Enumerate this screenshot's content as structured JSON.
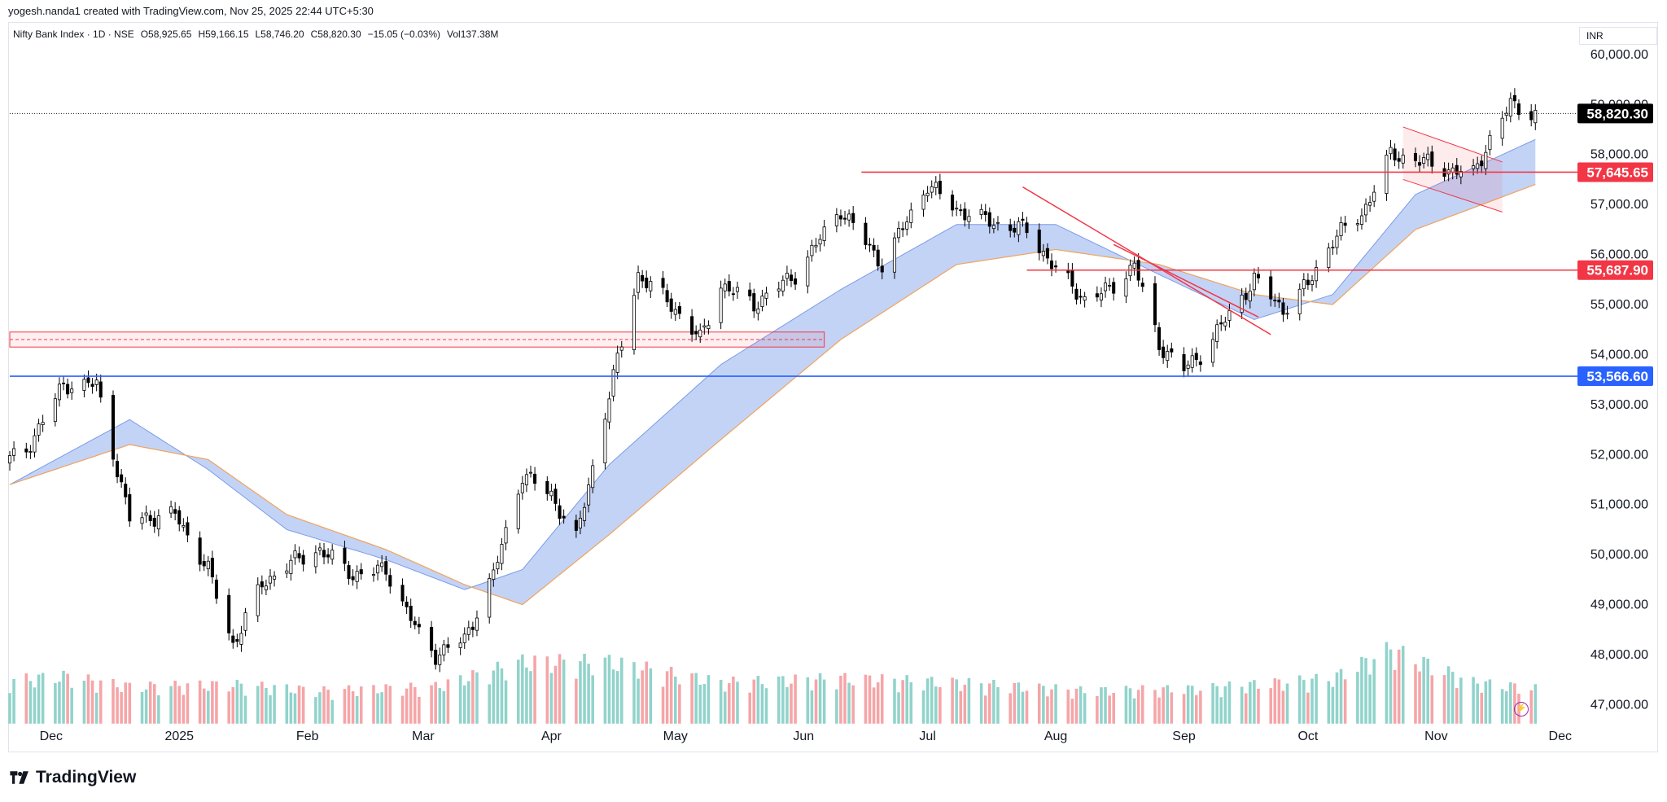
{
  "credit": "yogesh.nanda1 created with TradingView.com, Nov 25, 2025 22:44 UTC+5:30",
  "legend": {
    "symbol": "Nifty Bank Index · 1D · NSE",
    "open": "O58,925.65",
    "high": "H59,166.15",
    "low": "L58,746.20",
    "close": "C58,820.30",
    "change": "−15.05 (−0.03%)",
    "volume": "Vol137.38M"
  },
  "currency": "INR",
  "brand": "TradingView",
  "colors": {
    "up_candle": "#ffffff",
    "down_candle": "#000000",
    "candle_border": "#000000",
    "vol_up": "#91d3cb",
    "vol_down": "#f5a5a8",
    "band_fill": "#b8cbf5",
    "band_upper": "#7a9be8",
    "band_lower": "#f0a35a",
    "level_red": "#f23645",
    "level_blue": "#2962ff",
    "trend_red": "#f23645",
    "zone_fill": "rgba(242,54,69,0.08)",
    "last_price_bg": "#000000"
  },
  "chart_data": {
    "type": "candlestick",
    "title": "",
    "y_axis": {
      "min": 46600,
      "max": 60600,
      "ticks": [
        47000,
        48000,
        49000,
        50000,
        51000,
        52000,
        53000,
        54000,
        55000,
        56000,
        57000,
        58000,
        59000,
        60000
      ],
      "tick_labels": [
        "47,000.00",
        "48,000.00",
        "49,000.00",
        "50,000.00",
        "51,000.00",
        "52,000.00",
        "53,000.00",
        "54,000.00",
        "55,000.00",
        "56,000.00",
        "57,000.00",
        "58,000.00",
        "59,000.00",
        "60,000.00"
      ]
    },
    "x_axis": {
      "labels": [
        "Dec",
        "2025",
        "Feb",
        "Mar",
        "Apr",
        "May",
        "Jun",
        "Jul",
        "Aug",
        "Sep",
        "Oct",
        "Nov",
        "Dec"
      ],
      "dates": [
        "2024-12-01",
        "2025-01-01",
        "2025-02-01",
        "2025-03-01",
        "2025-04-01",
        "2025-05-01",
        "2025-06-01",
        "2025-07-01",
        "2025-08-01",
        "2025-09-01",
        "2025-10-01",
        "2025-11-01",
        "2025-12-01"
      ],
      "start": "2024-11-21",
      "end": "2025-12-04"
    },
    "close_series": {
      "description": "approximate daily closes, linearly sampled between key points",
      "dates": [
        "2024-11-21",
        "2024-11-25",
        "2024-12-04",
        "2024-12-12",
        "2024-12-20",
        "2024-12-31",
        "2025-01-08",
        "2025-01-14",
        "2025-01-21",
        "2025-01-27",
        "2025-02-04",
        "2025-02-12",
        "2025-02-20",
        "2025-02-28",
        "2025-03-04",
        "2025-03-11",
        "2025-03-18",
        "2025-03-25",
        "2025-04-01",
        "2025-04-07",
        "2025-04-15",
        "2025-04-22",
        "2025-04-30",
        "2025-05-07",
        "2025-05-12",
        "2025-05-20",
        "2025-05-30",
        "2025-06-10",
        "2025-06-20",
        "2025-07-01",
        "2025-07-08",
        "2025-07-18",
        "2025-07-25",
        "2025-08-01",
        "2025-08-08",
        "2025-08-14",
        "2025-08-20",
        "2025-08-26",
        "2025-09-01",
        "2025-09-05",
        "2025-09-12",
        "2025-09-18",
        "2025-09-25",
        "2025-10-01",
        "2025-10-07",
        "2025-10-14",
        "2025-10-21",
        "2025-10-27",
        "2025-11-04",
        "2025-11-10",
        "2025-11-14",
        "2025-11-19",
        "2025-11-25"
      ],
      "values": [
        51900,
        52100,
        53400,
        53400,
        50700,
        50800,
        49700,
        48200,
        49400,
        49800,
        50100,
        49600,
        49700,
        48400,
        48000,
        48300,
        49600,
        51600,
        51200,
        50300,
        53200,
        55600,
        55000,
        54300,
        55400,
        55000,
        55600,
        56900,
        55800,
        57400,
        56900,
        56600,
        56500,
        55700,
        55100,
        55300,
        55800,
        54200,
        53700,
        54000,
        54800,
        55500,
        54900,
        55400,
        56300,
        56800,
        58000,
        57900,
        57700,
        57600,
        58300,
        59000,
        58820
      ]
    },
    "volume_series": {
      "unit": "shares (relative)",
      "dates": [
        "2024-11-21",
        "2024-12-04",
        "2024-12-20",
        "2025-01-14",
        "2025-02-04",
        "2025-03-04",
        "2025-03-25",
        "2025-04-15",
        "2025-05-12",
        "2025-06-10",
        "2025-07-08",
        "2025-08-08",
        "2025-09-05",
        "2025-10-07",
        "2025-10-21",
        "2025-11-10",
        "2025-11-25"
      ],
      "values": [
        105,
        115,
        90,
        95,
        80,
        90,
        150,
        150,
        100,
        110,
        100,
        80,
        85,
        110,
        180,
        100,
        85
      ],
      "scale_max": 300
    },
    "ema_band": {
      "fast_dates": [
        "2024-11-21",
        "2024-12-20",
        "2025-01-08",
        "2025-01-27",
        "2025-02-20",
        "2025-03-11",
        "2025-03-25",
        "2025-04-15",
        "2025-05-12",
        "2025-06-10",
        "2025-07-08",
        "2025-08-01",
        "2025-08-26",
        "2025-09-18",
        "2025-10-07",
        "2025-10-27",
        "2025-11-25"
      ],
      "fast_values": [
        51400,
        52700,
        51700,
        50500,
        49900,
        49300,
        49700,
        51800,
        53800,
        55300,
        56600,
        56600,
        55600,
        54700,
        55200,
        57200,
        58300
      ],
      "slow_dates": [
        "2024-11-21",
        "2024-12-20",
        "2025-01-08",
        "2025-01-27",
        "2025-02-20",
        "2025-03-11",
        "2025-03-25",
        "2025-04-15",
        "2025-05-12",
        "2025-06-10",
        "2025-07-08",
        "2025-08-01",
        "2025-08-26",
        "2025-09-18",
        "2025-10-07",
        "2025-10-27",
        "2025-11-25"
      ],
      "slow_values": [
        51400,
        52200,
        51900,
        50800,
        50100,
        49400,
        49000,
        50400,
        52300,
        54300,
        55800,
        56100,
        55800,
        55200,
        55000,
        56500,
        57400
      ]
    },
    "horizontal_levels": [
      {
        "price": 57645.65,
        "label": "57,645.65",
        "color": "#f23645",
        "from": "2025-06-15"
      },
      {
        "price": 55687.9,
        "label": "55,687.90",
        "color": "#f23645",
        "from": "2025-07-25"
      },
      {
        "price": 53566.6,
        "label": "53,566.60",
        "color": "#2962ff",
        "from": "2024-11-21"
      }
    ],
    "last_price": {
      "price": 58820.3,
      "label": "58,820.30"
    },
    "zone": {
      "from": "2024-11-21",
      "to": "2025-06-06",
      "top": 54450,
      "bottom": 54150,
      "mid": 54300
    },
    "trendlines": [
      {
        "from": [
          "2025-07-24",
          57350
        ],
        "to": [
          "2025-09-22",
          54400
        ]
      },
      {
        "from": [
          "2025-08-15",
          56200
        ],
        "to": [
          "2025-09-19",
          54750
        ]
      }
    ],
    "flag": {
      "upper": [
        [
          "2025-10-24",
          58550
        ],
        [
          "2025-11-17",
          57850
        ]
      ],
      "lower": [
        [
          "2025-10-24",
          57500
        ],
        [
          "2025-11-17",
          56850
        ]
      ]
    }
  }
}
